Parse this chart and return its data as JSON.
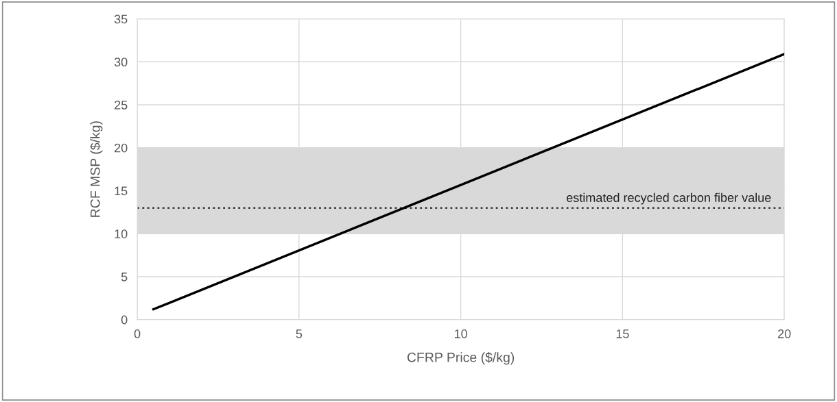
{
  "chart_data": {
    "type": "line",
    "xlabel": "CFRP Price ($/kg)",
    "ylabel": "RCF MSP ($/kg)",
    "x": [
      0.5,
      20
    ],
    "series": [
      {
        "color": "#000000",
        "values": [
          1.2,
          30.9
        ]
      }
    ],
    "xlim": [
      0,
      20
    ],
    "xticks": [
      0,
      5,
      10,
      15,
      20
    ],
    "ylim": [
      0,
      35
    ],
    "yticks": [
      0,
      5,
      10,
      15,
      20,
      25,
      30,
      35
    ],
    "grid": true,
    "marker": "none",
    "line_style": "solid",
    "bands": [
      {
        "axis": "y",
        "from": 10,
        "to": 20,
        "color": "#d9d9d9"
      }
    ],
    "ref_lines": [
      {
        "axis": "y",
        "value": 13,
        "label": "estimated recycled carbon fiber value",
        "color": "#404040",
        "line_style": "dotted"
      }
    ]
  }
}
